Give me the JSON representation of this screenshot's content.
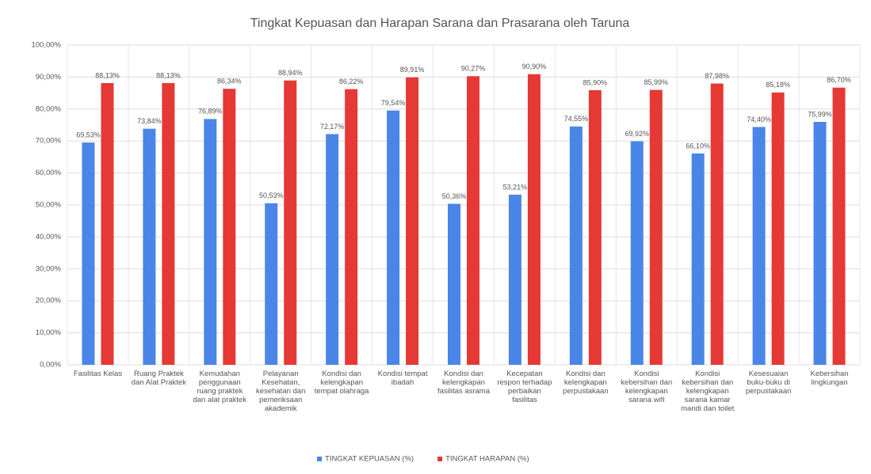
{
  "chart_data": {
    "type": "bar",
    "title": "Tingkat Kepuasan dan Harapan Sarana dan Prasarana oleh Taruna",
    "categories": [
      "Fasilitas Kelas",
      "Ruang Praktek dan Alat Praktek",
      "Kemudahan penggunaan ruang praktek dan alat praktek",
      "Pelayanan Kesehatan, kesehatan dan pemeriksaan akademik",
      "Kondisi dan kelengkapan tempat olahraga",
      "Kondisi tempat ibadah",
      "Kondisi dan kelengkapan fasilitas asrama",
      "Kecepatan respon terhadap perbaikan fasilitas",
      "Kondisi dan kelengkapan perpustakaan",
      "Kondisi kebersihan dan kelengkapan sarana wifi",
      "Kondisi kebersihan dan kelengkapan sarana kamar mandi dan toilet",
      "Kesesuaian buku-buku di perpustakaan",
      "Kebersihan lingkungan"
    ],
    "series": [
      {
        "name": "TINGKAT KEPUASAN (%)",
        "color": "#4a86e8",
        "values": [
          69.53,
          73.84,
          76.89,
          50.53,
          72.17,
          79.54,
          50.36,
          53.21,
          74.55,
          69.92,
          66.1,
          74.4,
          75.99
        ],
        "value_labels": [
          "69,53%",
          "73,84%",
          "76,89%",
          "50,53%",
          "72,17%",
          "79,54%",
          "50,36%",
          "53,21%",
          "74,55%",
          "69,92%",
          "66,10%",
          "74,40%",
          "75,99%"
        ]
      },
      {
        "name": "TINGKAT HARAPAN (%)",
        "color": "#e53935",
        "values": [
          88.13,
          88.13,
          86.34,
          88.94,
          86.22,
          89.91,
          90.27,
          90.9,
          85.9,
          85.99,
          87.98,
          85.18,
          86.7
        ],
        "value_labels": [
          "88,13%",
          "88,13%",
          "86,34%",
          "88,94%",
          "86,22%",
          "89,91%",
          "90,27%",
          "90,90%",
          "85,90%",
          "85,99%",
          "87,98%",
          "85,18%",
          "86,70%"
        ]
      }
    ],
    "ylim": [
      0,
      100
    ],
    "yticks": [
      {
        "value": 0,
        "label": "0,00%"
      },
      {
        "value": 10,
        "label": "10,00%"
      },
      {
        "value": 20,
        "label": "20,00%"
      },
      {
        "value": 30,
        "label": "30,00%"
      },
      {
        "value": 40,
        "label": "40,00%"
      },
      {
        "value": 50,
        "label": "50,00%"
      },
      {
        "value": 60,
        "label": "60,00%"
      },
      {
        "value": 70,
        "label": "70,00%"
      },
      {
        "value": 80,
        "label": "80,00%"
      },
      {
        "value": 90,
        "label": "90,00%"
      },
      {
        "value": 100,
        "label": "100,00%"
      }
    ],
    "grid": true,
    "legend": "bottom"
  }
}
